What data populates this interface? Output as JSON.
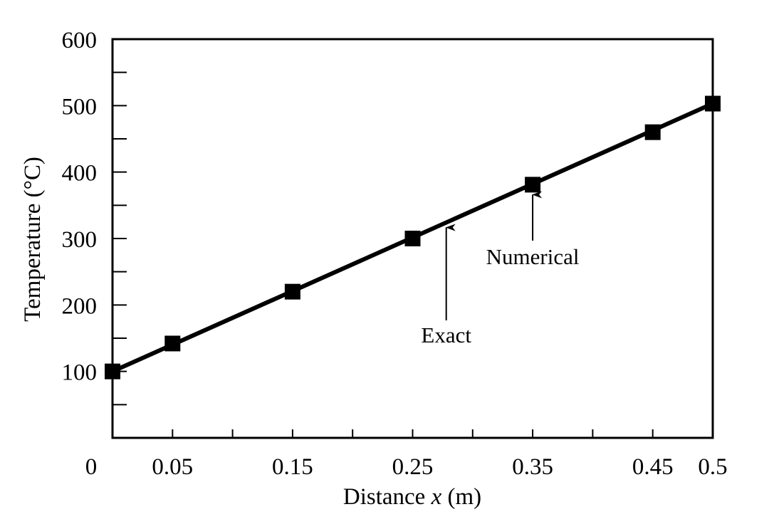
{
  "chart_data": {
    "type": "line",
    "xlabel": "Distance x (m)",
    "ylabel": "Temperature (°C)",
    "xlim": [
      0,
      0.5
    ],
    "ylim": [
      0,
      600
    ],
    "x_ticks": [
      {
        "value": 0,
        "label": "0"
      },
      {
        "value": 0.05,
        "label": "0.05"
      },
      {
        "value": 0.15,
        "label": "0.15"
      },
      {
        "value": 0.25,
        "label": "0.25"
      },
      {
        "value": 0.35,
        "label": "0.35"
      },
      {
        "value": 0.45,
        "label": "0.45"
      },
      {
        "value": 0.5,
        "label": "0.5"
      }
    ],
    "y_ticks": [
      {
        "value": 100,
        "label": "100"
      },
      {
        "value": 200,
        "label": "200"
      },
      {
        "value": 300,
        "label": "300"
      },
      {
        "value": 400,
        "label": "400"
      },
      {
        "value": 500,
        "label": "500"
      },
      {
        "value": 600,
        "label": "600"
      }
    ],
    "grid": false,
    "series": [
      {
        "name": "Exact",
        "style": "line",
        "x": [
          0,
          0.5
        ],
        "y": [
          100,
          503
        ]
      },
      {
        "name": "Numerical",
        "style": "square-markers",
        "x": [
          0,
          0.05,
          0.15,
          0.25,
          0.35,
          0.45,
          0.5
        ],
        "y": [
          100,
          142,
          220,
          300,
          381,
          460,
          503
        ]
      }
    ],
    "annotations": [
      {
        "text": "Exact",
        "points_to": {
          "x": 0.278,
          "y": 323
        }
      },
      {
        "text": "Numerical",
        "points_to": {
          "x": 0.35,
          "y": 381
        }
      }
    ],
    "colors": {
      "line": "#000000",
      "marker": "#000000",
      "frame": "#000000"
    }
  }
}
